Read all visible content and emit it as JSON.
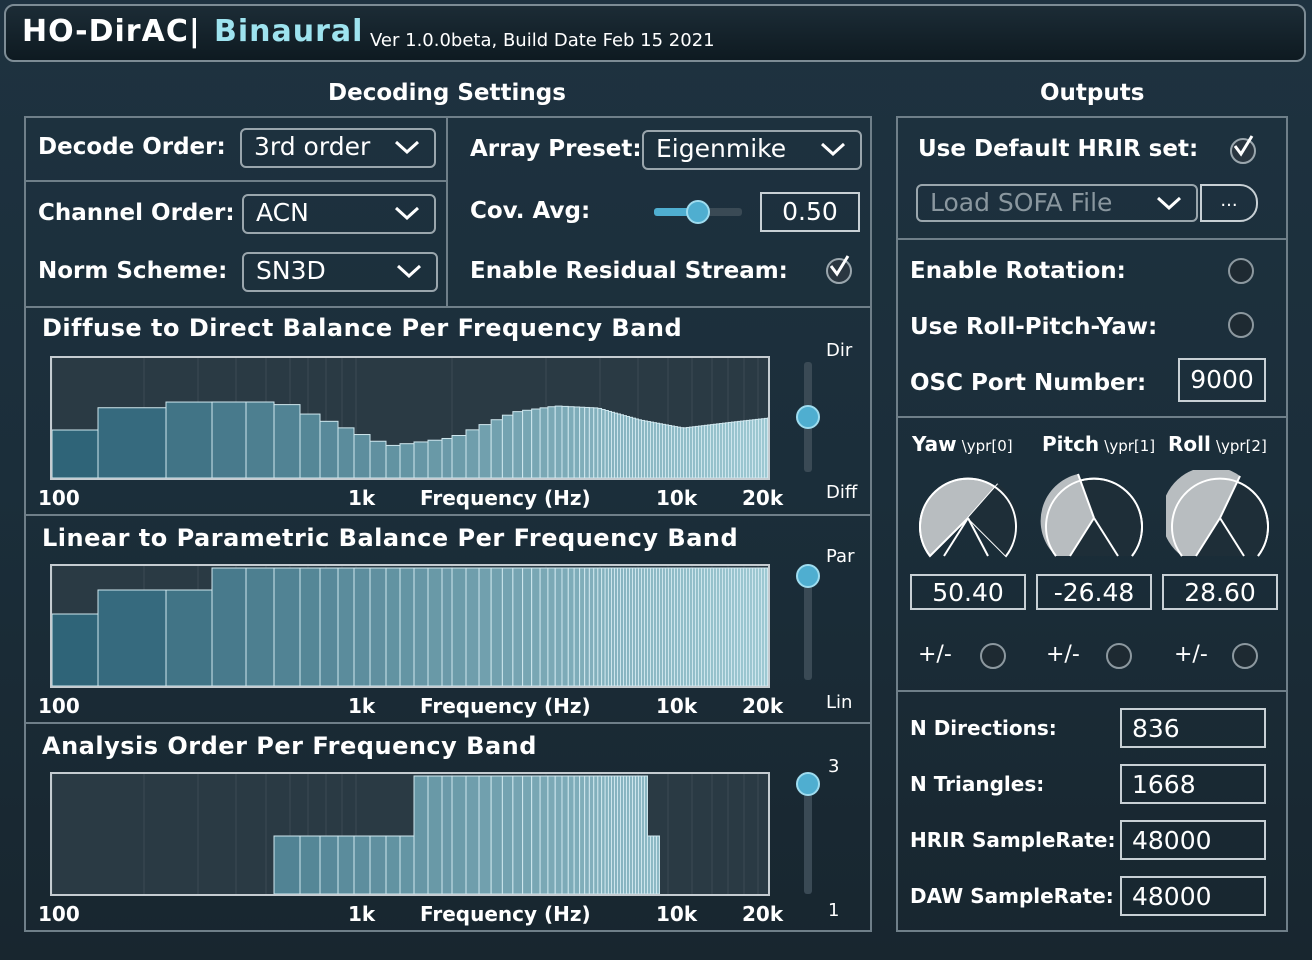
{
  "header": {
    "title": "HO-DirAC|",
    "subtitle": "Binaural",
    "version": "Ver 1.0.0beta, Build Date Feb 15 2021"
  },
  "decoding": {
    "section_title": "Decoding Settings",
    "decode_order_label": "Decode Order:",
    "decode_order_value": "3rd order",
    "channel_order_label": "Channel Order:",
    "channel_order_value": "ACN",
    "norm_scheme_label": "Norm Scheme:",
    "norm_scheme_value": "SN3D",
    "array_preset_label": "Array Preset:",
    "array_preset_value": "Eigenmike",
    "cov_avg_label": "Cov. Avg:",
    "cov_avg_value": "0.50",
    "cov_avg_fraction": 0.5,
    "residual_label": "Enable Residual Stream:",
    "residual_checked": true
  },
  "graphs": [
    {
      "title": "Diffuse to Direct Balance Per Frequency Band",
      "top_label": "Dir",
      "bottom_label": "Diff",
      "slider_fraction": 0.5,
      "color": "#2f6f80"
    },
    {
      "title": "Linear to Parametric Balance Per Frequency Band",
      "top_label": "Par",
      "bottom_label": "Lin",
      "slider_fraction": 1.0,
      "color": "#2f6f80"
    },
    {
      "title": "Analysis Order Per Frequency Band",
      "top_label": "3",
      "bottom_label": "1",
      "slider_fraction": 1.0,
      "color": "#2f6f80"
    }
  ],
  "axis": {
    "t100": "100",
    "t1k": "1k",
    "label": "Frequency (Hz)",
    "t10k": "10k",
    "t20k": "20k"
  },
  "outputs": {
    "section_title": "Outputs",
    "hrir_label": "Use Default HRIR set:",
    "hrir_checked": true,
    "sofa_label": "Load SOFA File",
    "browse_label": "...",
    "rotation_label": "Enable Rotation:",
    "rpy_label": "Use Roll-Pitch-Yaw:",
    "osc_label": "OSC Port Number:",
    "osc_value": "9000",
    "yaw_label": "Yaw",
    "yaw_osc": "\\ypr[0]",
    "yaw_value": "50.40",
    "pitch_label": "Pitch",
    "pitch_osc": "\\ypr[1]",
    "pitch_value": "-26.48",
    "roll_label": "Roll",
    "roll_osc": "\\ypr[2]",
    "roll_value": "28.60",
    "flip_label": "+/-",
    "n_dirs_label": "N Directions:",
    "n_dirs_value": "836",
    "n_tri_label": "N Triangles:",
    "n_tri_value": "1668",
    "hrir_sr_label": "HRIR SampleRate:",
    "hrir_sr_value": "48000",
    "daw_sr_label": "DAW SampleRate:",
    "daw_sr_value": "48000"
  }
}
